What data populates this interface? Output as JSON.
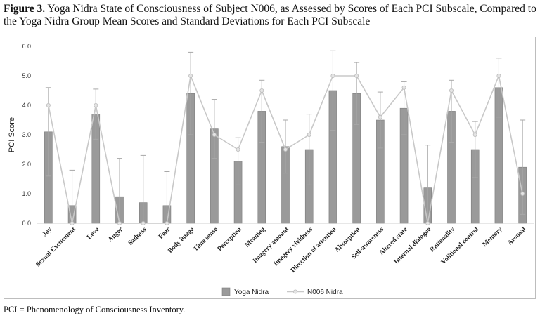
{
  "caption": {
    "label": "Figure 3.",
    "text": " Yoga Nidra State of Consciousness of Subject N006, as Assessed by Scores of Each PCI Subscale, Compared to the Yoga Nidra Group Mean Scores and Standard Deviations for Each PCI Subscale"
  },
  "footnote": "PCI = Phenomenology of Consciousness Inventory.",
  "chart_data": {
    "type": "bar",
    "ylabel": "PCI Score",
    "ylim": [
      0,
      6
    ],
    "yticks": [
      "0.0",
      "1.0",
      "2.0",
      "3.0",
      "4.0",
      "5.0",
      "6.0"
    ],
    "categories": [
      "Joy",
      "Sexual Excitement",
      "Love",
      "Anger",
      "Sadness",
      "Fear",
      "Body image",
      "Time sense",
      "Perception",
      "Meaning",
      "Imagery amount",
      "Imagery vividness",
      "Direction of attention",
      "Absorption",
      "Self-awareness",
      "Altered state",
      "Internal dialogue",
      "Rationality",
      "Volitional control",
      "Memory",
      "Arousal"
    ],
    "series": [
      {
        "name": "Yoga Nidra",
        "type": "bar",
        "values": [
          3.1,
          0.6,
          3.7,
          0.9,
          0.7,
          0.6,
          4.4,
          3.2,
          2.1,
          3.8,
          2.6,
          2.5,
          4.5,
          4.4,
          3.5,
          3.9,
          1.2,
          3.8,
          2.5,
          4.6,
          1.9
        ],
        "error_upper": [
          4.6,
          1.8,
          4.55,
          2.2,
          2.3,
          1.75,
          5.8,
          4.2,
          2.9,
          4.85,
          3.5,
          3.7,
          5.85,
          5.45,
          4.45,
          4.8,
          2.65,
          4.85,
          3.45,
          5.6,
          3.5
        ],
        "error_lower": [
          1.6,
          0,
          2.85,
          0,
          0,
          0,
          3.0,
          2.2,
          1.3,
          2.75,
          1.7,
          1.3,
          3.15,
          3.35,
          2.55,
          3.0,
          0,
          2.75,
          1.55,
          3.6,
          0.3
        ]
      },
      {
        "name": "N006 Nidra",
        "type": "line",
        "values": [
          4.0,
          0.0,
          4.0,
          0.0,
          0.0,
          0.0,
          5.0,
          3.0,
          2.5,
          4.5,
          2.5,
          3.0,
          5.0,
          5.0,
          3.6,
          4.6,
          0.0,
          4.5,
          3.0,
          5.0,
          1.0
        ]
      }
    ],
    "legend": "bottom",
    "grid": false,
    "colors": {
      "bar": "#9a9a9a",
      "line": "#c8c8c8",
      "error": "#a8a8a8"
    }
  }
}
